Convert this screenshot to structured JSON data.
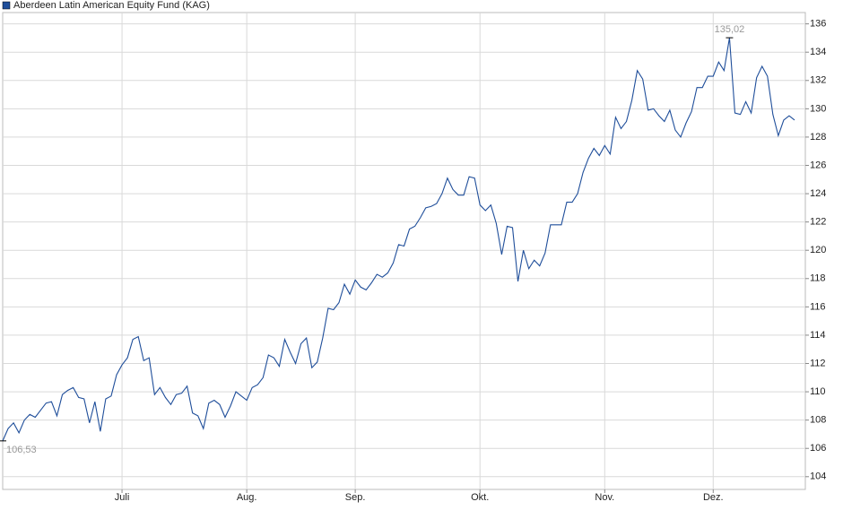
{
  "chart_data": {
    "type": "line",
    "categories": [
      null,
      null,
      null,
      null,
      null,
      null,
      null,
      null,
      null,
      null,
      null,
      null,
      null,
      null,
      null,
      null,
      null,
      null,
      null,
      null,
      null,
      null,
      "Juli",
      null,
      null,
      null,
      null,
      null,
      null,
      null,
      null,
      null,
      null,
      null,
      null,
      null,
      null,
      null,
      null,
      null,
      null,
      null,
      null,
      null,
      null,
      "Aug.",
      null,
      null,
      null,
      null,
      null,
      null,
      null,
      null,
      null,
      null,
      null,
      null,
      null,
      null,
      null,
      null,
      null,
      null,
      null,
      "Sep.",
      null,
      null,
      null,
      null,
      null,
      null,
      null,
      null,
      null,
      null,
      null,
      null,
      null,
      null,
      null,
      null,
      null,
      null,
      null,
      null,
      null,
      null,
      "Okt.",
      null,
      null,
      null,
      null,
      null,
      null,
      null,
      null,
      null,
      null,
      null,
      null,
      null,
      null,
      null,
      null,
      null,
      null,
      null,
      null,
      null,
      null,
      "Nov.",
      null,
      null,
      null,
      null,
      null,
      null,
      null,
      null,
      null,
      null,
      null,
      null,
      null,
      null,
      null,
      null,
      null,
      null,
      null,
      "Dez.",
      null,
      null,
      null,
      null,
      null,
      null,
      null,
      null,
      null,
      null,
      null,
      null,
      null,
      null,
      null
    ],
    "series": [
      {
        "name": "Aberdeen Latin American Equity Fund (KAG)",
        "color": "#1f4e9a",
        "values": [
          106.53,
          107.4,
          107.8,
          107.1,
          108.0,
          108.4,
          108.2,
          108.7,
          109.2,
          109.3,
          108.3,
          109.8,
          110.1,
          110.3,
          109.6,
          109.5,
          107.8,
          109.3,
          107.2,
          109.5,
          109.7,
          111.2,
          111.9,
          112.4,
          113.7,
          113.9,
          112.2,
          112.4,
          109.8,
          110.3,
          109.6,
          109.1,
          109.8,
          109.9,
          110.4,
          108.5,
          108.3,
          107.4,
          109.2,
          109.4,
          109.1,
          108.2,
          109.0,
          110.0,
          109.7,
          109.4,
          110.3,
          110.5,
          111.0,
          112.6,
          112.4,
          111.8,
          113.7,
          112.8,
          112.0,
          113.4,
          113.8,
          111.7,
          112.1,
          113.8,
          115.9,
          115.8,
          116.3,
          117.6,
          116.9,
          117.9,
          117.4,
          117.2,
          117.7,
          118.3,
          118.1,
          118.4,
          119.1,
          120.4,
          120.3,
          121.5,
          121.7,
          122.3,
          123.0,
          123.1,
          123.3,
          124.0,
          125.1,
          124.3,
          123.9,
          123.9,
          125.2,
          125.1,
          123.2,
          122.8,
          123.2,
          121.9,
          119.7,
          121.7,
          121.6,
          117.8,
          120.0,
          118.7,
          119.3,
          118.9,
          119.8,
          121.8,
          121.8,
          121.8,
          123.4,
          123.4,
          124.0,
          125.5,
          126.5,
          127.2,
          126.7,
          127.4,
          126.8,
          129.4,
          128.6,
          129.1,
          130.6,
          132.7,
          132.1,
          129.9,
          130.0,
          129.5,
          129.1,
          129.9,
          128.5,
          128.0,
          129.0,
          129.8,
          131.5,
          131.5,
          132.3,
          132.3,
          133.3,
          132.7,
          135.02,
          129.7,
          129.6,
          130.5,
          129.7,
          132.2,
          133.0,
          132.3,
          129.6,
          128.1,
          129.2,
          129.5,
          129.2
        ],
        "value_labels": [
          "106,53",
          null,
          null,
          null,
          null,
          null,
          null,
          null,
          null,
          null,
          null,
          null,
          null,
          null,
          null,
          null,
          null,
          null,
          null,
          null,
          null,
          null,
          null,
          null,
          null,
          null,
          null,
          null,
          null,
          null,
          null,
          null,
          null,
          null,
          null,
          null,
          null,
          null,
          null,
          null,
          null,
          null,
          null,
          null,
          null,
          null,
          null,
          null,
          null,
          null,
          null,
          null,
          null,
          null,
          null,
          null,
          null,
          null,
          null,
          null,
          null,
          null,
          null,
          null,
          null,
          null,
          null,
          null,
          null,
          null,
          null,
          null,
          null,
          null,
          null,
          null,
          null,
          null,
          null,
          null,
          null,
          null,
          null,
          null,
          null,
          null,
          null,
          null,
          null,
          null,
          null,
          null,
          null,
          null,
          null,
          null,
          null,
          null,
          null,
          null,
          null,
          null,
          null,
          null,
          null,
          null,
          null,
          null,
          null,
          null,
          null,
          null,
          null,
          null,
          null,
          null,
          null,
          null,
          null,
          null,
          null,
          null,
          null,
          null,
          null,
          null,
          null,
          null,
          null,
          null,
          null,
          null,
          null,
          null,
          "135,02",
          null,
          null,
          null,
          null,
          null,
          null,
          null,
          null,
          null,
          null,
          null,
          null
        ]
      }
    ],
    "ylim": [
      103.1,
      136.8
    ],
    "yticks": [
      104,
      106,
      108,
      110,
      112,
      114,
      116,
      118,
      120,
      122,
      124,
      126,
      128,
      130,
      132,
      134,
      136
    ],
    "grid": true
  }
}
